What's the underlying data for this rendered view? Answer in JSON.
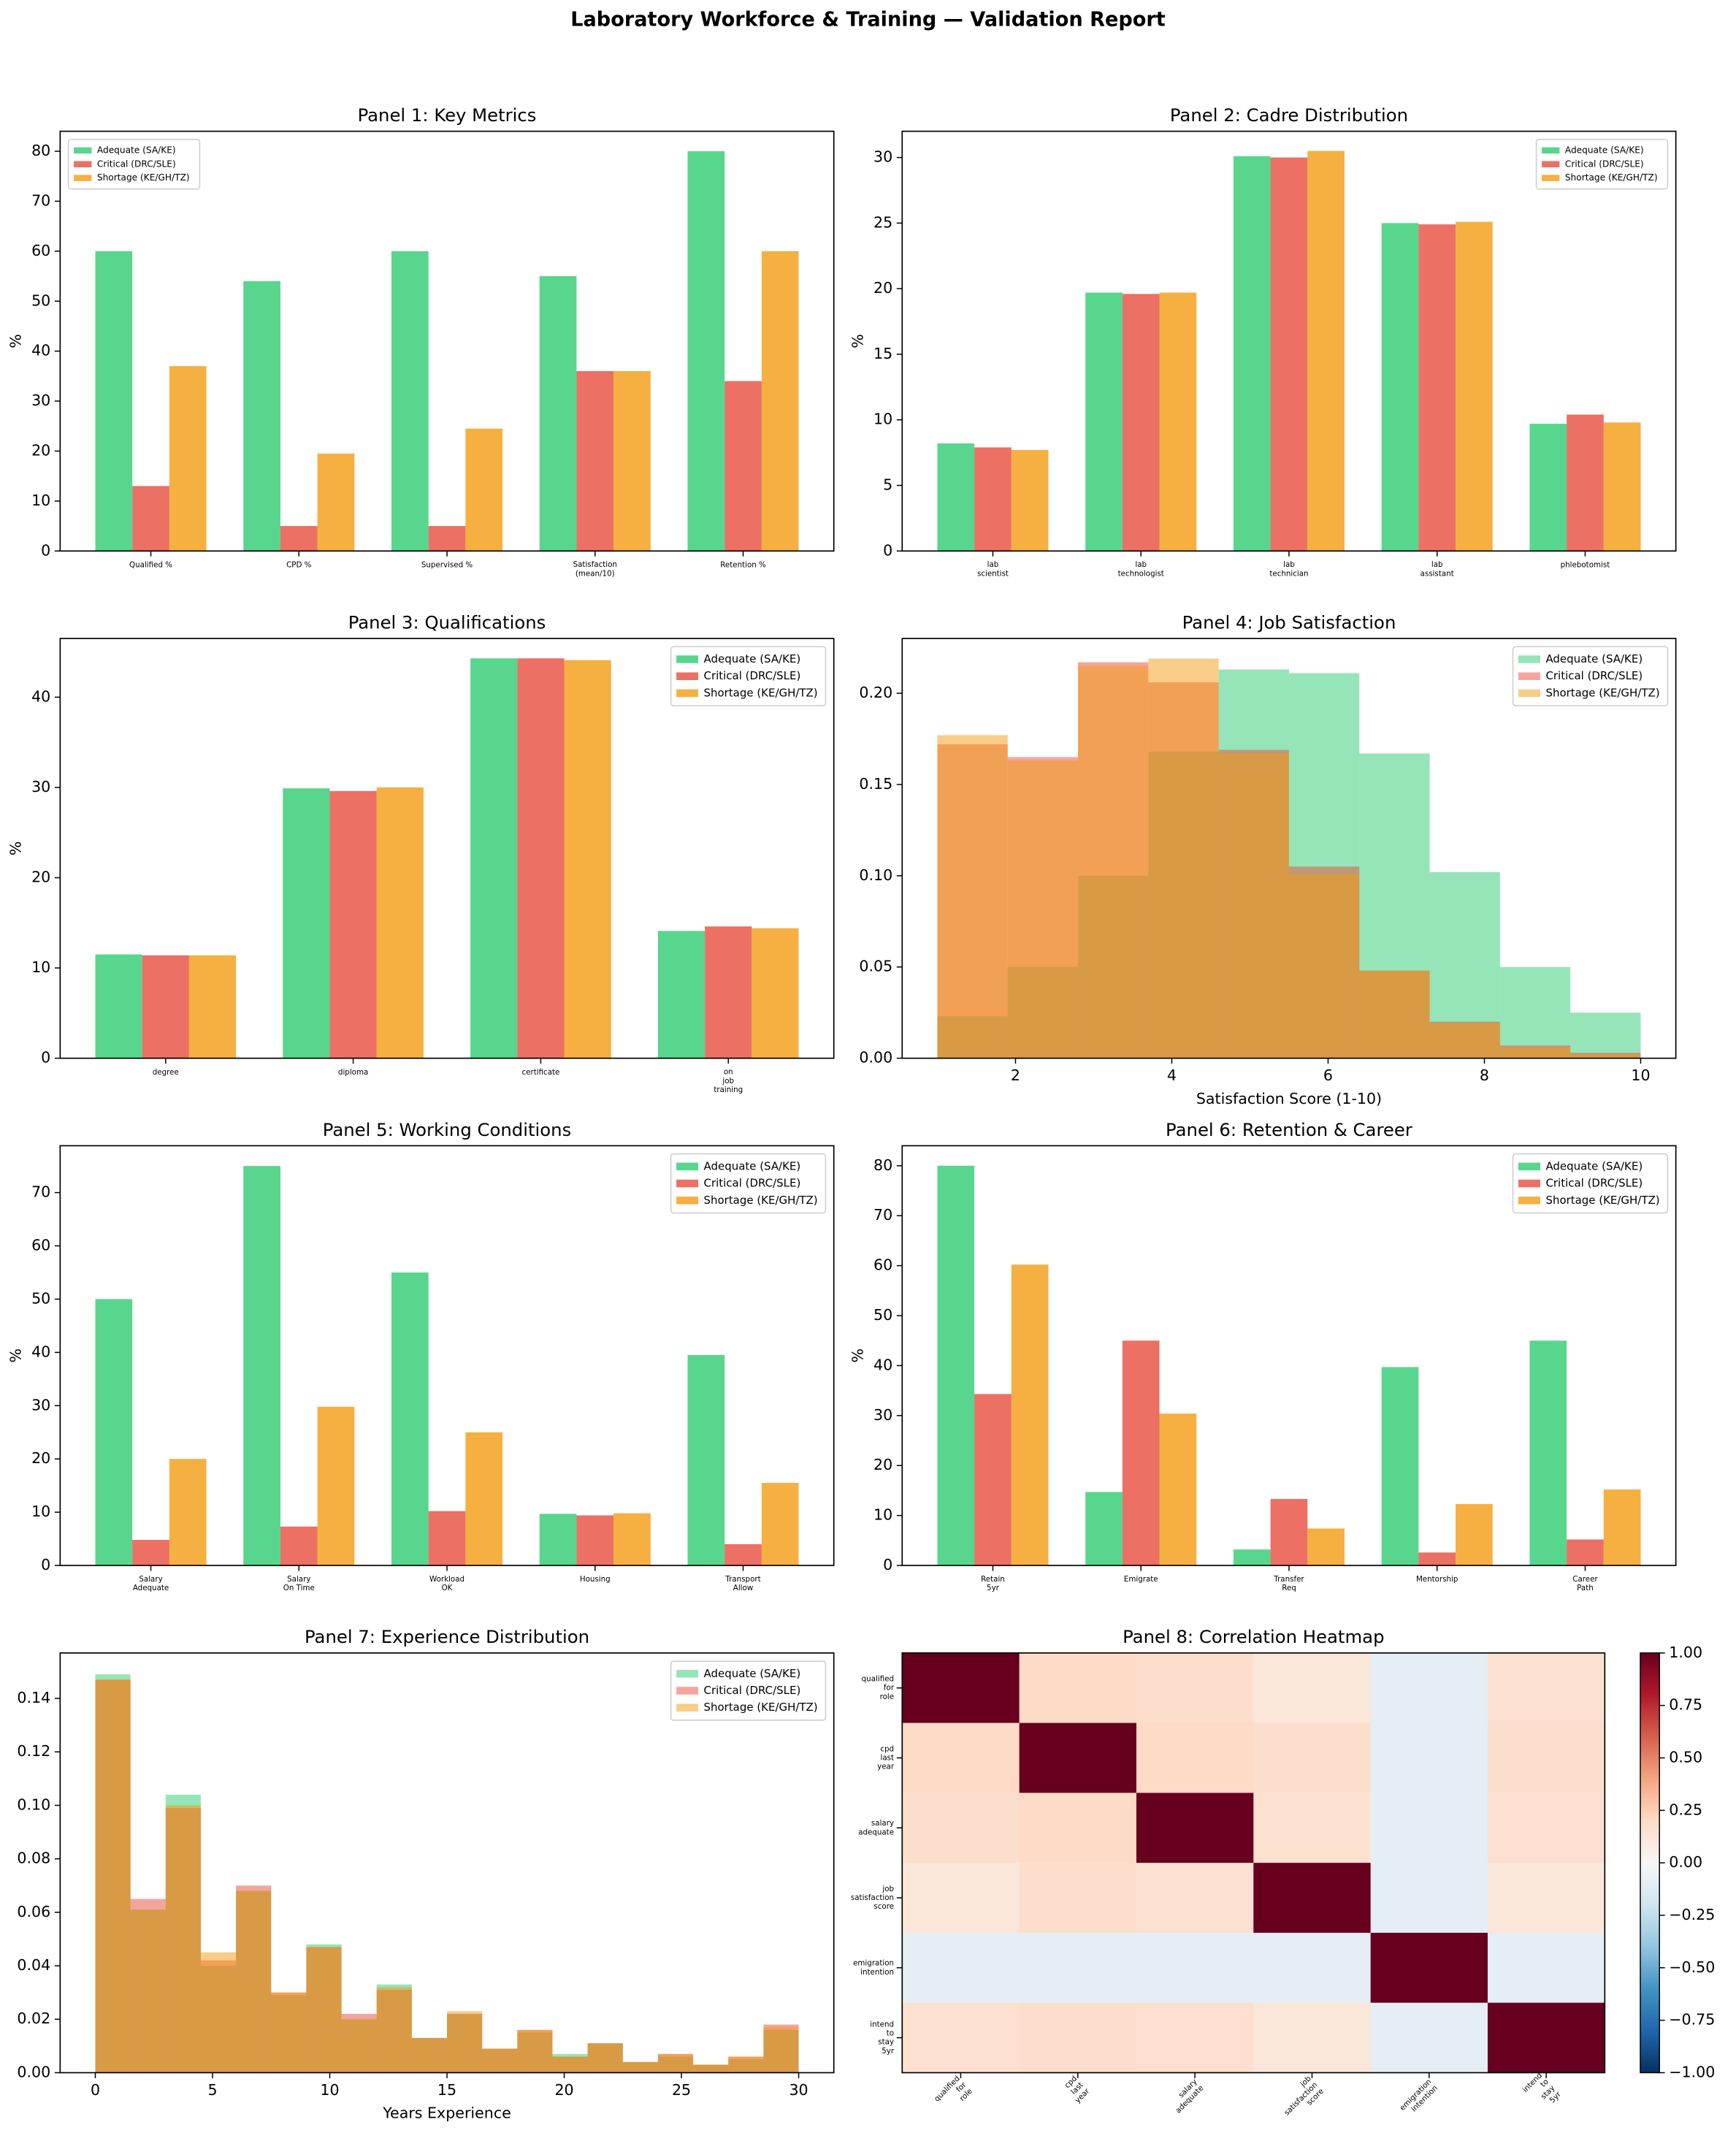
{
  "title": "Laboratory Workforce & Training — Validation Report",
  "chart_data": [
    {
      "type": "bar",
      "title": "Panel 1: Key Metrics",
      "ylabel": "%",
      "categories": [
        "Qualified %",
        "CPD %",
        "Supervised %",
        "Satisfaction\n(mean/10)",
        "Retention %"
      ],
      "series": [
        {
          "name": "Adequate (SA/KE)",
          "color": "#2ecc71",
          "values": [
            60,
            54,
            60,
            55,
            80
          ]
        },
        {
          "name": "Critical (DRC/SLE)",
          "color": "#e74c3c",
          "values": [
            13,
            5,
            5,
            36,
            34
          ]
        },
        {
          "name": "Shortage (KE/GH/TZ)",
          "color": "#f39c12",
          "values": [
            37,
            19.5,
            24.5,
            36,
            60
          ]
        }
      ],
      "ylim": [
        0,
        84
      ],
      "yticks": [
        0,
        10,
        20,
        30,
        40,
        50,
        60,
        70,
        80
      ],
      "legend": "upper left"
    },
    {
      "type": "bar",
      "title": "Panel 2: Cadre Distribution",
      "ylabel": "%",
      "categories": [
        "lab\nscientist",
        "lab\ntechnologist",
        "lab\ntechnician",
        "lab\nassistant",
        "phlebotomist"
      ],
      "series": [
        {
          "name": "Adequate (SA/KE)",
          "color": "#2ecc71",
          "values": [
            8.2,
            19.7,
            30.1,
            25,
            9.7
          ]
        },
        {
          "name": "Critical (DRC/SLE)",
          "color": "#e74c3c",
          "values": [
            7.9,
            19.6,
            30,
            24.9,
            10.4
          ]
        },
        {
          "name": "Shortage (KE/GH/TZ)",
          "color": "#f39c12",
          "values": [
            7.7,
            19.7,
            30.5,
            25.1,
            9.8
          ]
        }
      ],
      "ylim": [
        0,
        32
      ],
      "yticks": [
        0,
        5,
        10,
        15,
        20,
        25,
        30
      ],
      "legend": "upper right"
    },
    {
      "type": "bar",
      "title": "Panel 3: Qualifications",
      "ylabel": "%",
      "categories": [
        "degree",
        "diploma",
        "certificate",
        "on\njob\ntraining"
      ],
      "series": [
        {
          "name": "Adequate (SA/KE)",
          "color": "#2ecc71",
          "values": [
            11.5,
            29.9,
            44.3,
            14.1
          ]
        },
        {
          "name": "Critical (DRC/SLE)",
          "color": "#e74c3c",
          "values": [
            11.4,
            29.6,
            44.3,
            14.6
          ]
        },
        {
          "name": "Shortage (KE/GH/TZ)",
          "color": "#f39c12",
          "values": [
            11.4,
            30,
            44.1,
            14.4
          ]
        }
      ],
      "ylim": [
        0,
        46.5
      ],
      "yticks": [
        0,
        10,
        20,
        30,
        40
      ],
      "legend": "upper right"
    },
    {
      "type": "histogram",
      "title": "Panel 4: Job Satisfaction",
      "xlabel": "Satisfaction Score (1-10)",
      "bins": [
        1,
        1.9,
        2.8,
        3.7,
        4.6,
        5.5,
        6.4,
        7.3,
        8.2,
        9.1,
        10
      ],
      "series": [
        {
          "name": "Adequate (SA/KE)",
          "color": "#2ecc71",
          "values": [
            0.023,
            0.05,
            0.1,
            0.168,
            0.213,
            0.211,
            0.167,
            0.102,
            0.05,
            0.025
          ]
        },
        {
          "name": "Critical (DRC/SLE)",
          "color": "#e74c3c",
          "values": [
            0.172,
            0.165,
            0.217,
            0.206,
            0.169,
            0.105,
            0.048,
            0.02,
            0.007,
            0.003
          ]
        },
        {
          "name": "Shortage (KE/GH/TZ)",
          "color": "#f39c12",
          "values": [
            0.177,
            0.163,
            0.215,
            0.219,
            0.167,
            0.101,
            0.048,
            0.019,
            0.006,
            0.002
          ]
        }
      ],
      "xlim": [
        0.55,
        10.45
      ],
      "xticks": [
        2,
        4,
        6,
        8,
        10
      ],
      "ylim": [
        0,
        0.23
      ],
      "yticks": [
        {
          "value": 0,
          "label": "0.00"
        },
        {
          "value": 0.05,
          "label": "0.05"
        },
        {
          "value": 0.1,
          "label": "0.10"
        },
        {
          "value": 0.15,
          "label": "0.15"
        },
        {
          "value": 0.2,
          "label": "0.20"
        }
      ],
      "legend": "upper right"
    },
    {
      "type": "bar",
      "title": "Panel 5: Working Conditions",
      "ylabel": "%",
      "categories": [
        "Salary\nAdequate",
        "Salary\nOn Time",
        "Workload\nOK",
        "Housing",
        "Transport\nAllow"
      ],
      "series": [
        {
          "name": "Adequate (SA/KE)",
          "color": "#2ecc71",
          "values": [
            50,
            75,
            55,
            9.7,
            39.5
          ]
        },
        {
          "name": "Critical (DRC/SLE)",
          "color": "#e74c3c",
          "values": [
            4.8,
            7.3,
            10.2,
            9.4,
            4
          ]
        },
        {
          "name": "Shortage (KE/GH/TZ)",
          "color": "#f39c12",
          "values": [
            20,
            29.8,
            25,
            9.8,
            15.5
          ]
        }
      ],
      "ylim": [
        0,
        78.8
      ],
      "yticks": [
        0,
        10,
        20,
        30,
        40,
        50,
        60,
        70
      ],
      "legend": "upper right"
    },
    {
      "type": "bar",
      "title": "Panel 6: Retention & Career",
      "ylabel": "%",
      "categories": [
        "Retain\n5yr",
        "Emigrate",
        "Transfer\nReq",
        "Mentorship",
        "Career\nPath"
      ],
      "series": [
        {
          "name": "Adequate (SA/KE)",
          "color": "#2ecc71",
          "values": [
            80,
            14.7,
            3.2,
            39.7,
            45
          ]
        },
        {
          "name": "Critical (DRC/SLE)",
          "color": "#e74c3c",
          "values": [
            34.3,
            45,
            13.3,
            2.6,
            5.2
          ]
        },
        {
          "name": "Shortage (KE/GH/TZ)",
          "color": "#f39c12",
          "values": [
            60.2,
            30.4,
            7.4,
            12.3,
            15.2
          ]
        }
      ],
      "ylim": [
        0,
        84
      ],
      "yticks": [
        0,
        10,
        20,
        30,
        40,
        50,
        60,
        70,
        80
      ],
      "legend": "upper right"
    },
    {
      "type": "histogram",
      "title": "Panel 7: Experience Distribution",
      "xlabel": "Years Experience",
      "bins": [
        0,
        1.5,
        3,
        4.5,
        6,
        7.5,
        9,
        10.5,
        12,
        13.5,
        15,
        16.5,
        18,
        19.5,
        21,
        22.5,
        24,
        25.5,
        27,
        28.5,
        30
      ],
      "series": [
        {
          "name": "Adequate (SA/KE)",
          "color": "#2ecc71",
          "values": [
            0.149,
            0.061,
            0.104,
            0.04,
            0.068,
            0.029,
            0.048,
            0.02,
            0.033,
            0.013,
            0.022,
            0.009,
            0.015,
            0.007,
            0.011,
            0.004,
            0.006,
            0.003,
            0.005,
            0.016
          ]
        },
        {
          "name": "Critical (DRC/SLE)",
          "color": "#e74c3c",
          "values": [
            0.147,
            0.065,
            0.099,
            0.042,
            0.07,
            0.03,
            0.047,
            0.022,
            0.031,
            0.013,
            0.022,
            0.009,
            0.016,
            0.006,
            0.011,
            0.004,
            0.007,
            0.003,
            0.006,
            0.018
          ]
        },
        {
          "name": "Shortage (KE/GH/TZ)",
          "color": "#f39c12",
          "values": [
            0.147,
            0.061,
            0.1,
            0.045,
            0.068,
            0.03,
            0.047,
            0.02,
            0.032,
            0.013,
            0.023,
            0.009,
            0.016,
            0.006,
            0.011,
            0.004,
            0.007,
            0.003,
            0.006,
            0.017
          ]
        }
      ],
      "xlim": [
        -1.5,
        31.5
      ],
      "xticks": [
        0,
        5,
        10,
        15,
        20,
        25,
        30
      ],
      "ylim": [
        0,
        0.157
      ],
      "yticks": [
        {
          "value": 0,
          "label": "0.00"
        },
        {
          "value": 0.02,
          "label": "0.02"
        },
        {
          "value": 0.04,
          "label": "0.04"
        },
        {
          "value": 0.06,
          "label": "0.06"
        },
        {
          "value": 0.08,
          "label": "0.08"
        },
        {
          "value": 0.1,
          "label": "0.10"
        },
        {
          "value": 0.12,
          "label": "0.12"
        },
        {
          "value": 0.14,
          "label": "0.14"
        }
      ],
      "legend": "upper right"
    },
    {
      "type": "heatmap",
      "title": "Panel 8: Correlation Heatmap",
      "categories": [
        "qualified\nfor\nrole",
        "cpd\nlast\nyear",
        "salary\nadequate",
        "job\nsatisfaction\nscore",
        "emigration\nintention",
        "intend\nto\nstay\n5yr"
      ],
      "values": [
        [
          1,
          0.2,
          0.18,
          0.12,
          -0.1,
          0.16
        ],
        [
          0.2,
          1,
          0.2,
          0.18,
          -0.1,
          0.18
        ],
        [
          0.18,
          0.2,
          1,
          0.16,
          -0.1,
          0.17
        ],
        [
          0.12,
          0.18,
          0.16,
          1,
          -0.1,
          0.12
        ],
        [
          -0.1,
          -0.1,
          -0.1,
          -0.1,
          1,
          -0.1
        ],
        [
          0.16,
          0.18,
          0.17,
          0.12,
          -0.1,
          1
        ]
      ],
      "colormap": "RdBu_r",
      "clim": [
        -1,
        1
      ],
      "cticks": [
        {
          "value": -1,
          "label": "−1.00"
        },
        {
          "value": -0.75,
          "label": "−0.75"
        },
        {
          "value": -0.5,
          "label": "−0.50"
        },
        {
          "value": -0.25,
          "label": "−0.25"
        },
        {
          "value": 0,
          "label": "0.00"
        },
        {
          "value": 0.25,
          "label": "0.25"
        },
        {
          "value": 0.5,
          "label": "0.50"
        },
        {
          "value": 0.75,
          "label": "0.75"
        },
        {
          "value": 1,
          "label": "1.00"
        }
      ]
    }
  ]
}
